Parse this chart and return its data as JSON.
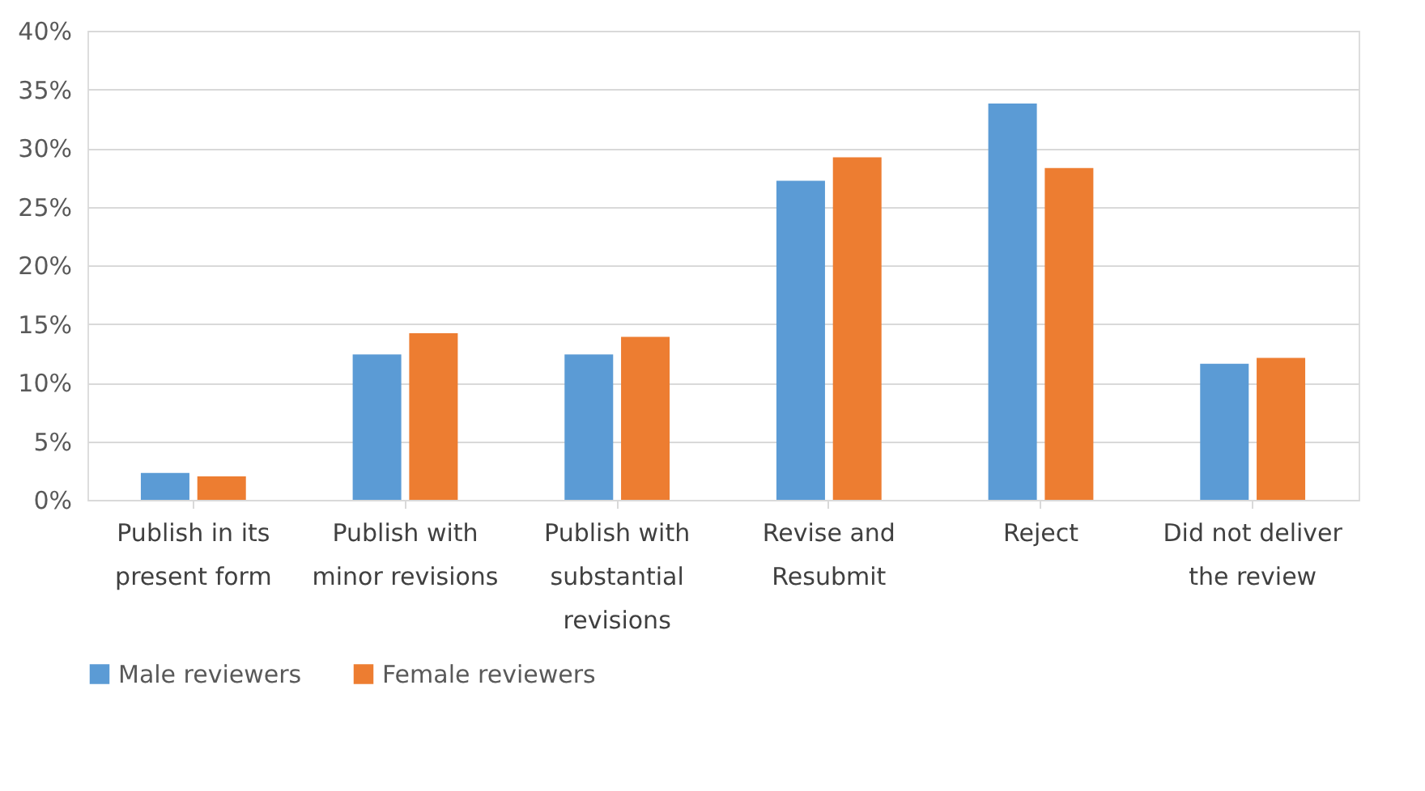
{
  "chart_data": {
    "type": "bar",
    "categories": [
      "Publish in its present form",
      "Publish with minor revisions",
      "Publish with substantial revisions",
      "Revise and Resubmit",
      "Reject",
      "Did not deliver the review"
    ],
    "series": [
      {
        "name": "Male reviewers",
        "color": "#5b9bd5",
        "values": [
          2.3,
          12.4,
          12.4,
          27.2,
          33.8,
          11.6
        ]
      },
      {
        "name": "Female reviewers",
        "color": "#ed7d31",
        "values": [
          2.0,
          14.2,
          13.9,
          29.2,
          28.3,
          12.1
        ]
      }
    ],
    "ylim": [
      0,
      40
    ],
    "yticks": [
      {
        "value": 0,
        "label": "0%"
      },
      {
        "value": 5,
        "label": "5%"
      },
      {
        "value": 10,
        "label": "10%"
      },
      {
        "value": 15,
        "label": "15%"
      },
      {
        "value": 20,
        "label": "20%"
      },
      {
        "value": 25,
        "label": "25%"
      },
      {
        "value": 30,
        "label": "30%"
      },
      {
        "value": 35,
        "label": "35%"
      },
      {
        "value": 40,
        "label": "40%"
      }
    ],
    "grid": "y",
    "legend": "bottom"
  }
}
